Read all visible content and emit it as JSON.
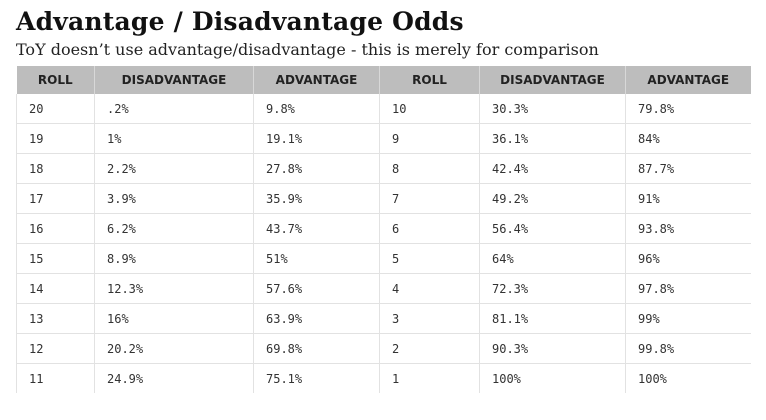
{
  "title": "Advantage / Disadvantage Odds",
  "subtitle": "ToY doesn’t use advantage/disadvantage - this is merely for comparison",
  "table": {
    "headers": [
      "ROLL",
      "DISADVANTAGE",
      "ADVANTAGE",
      "ROLL",
      "DISADVANTAGE",
      "ADVANTAGE"
    ],
    "rows": [
      [
        "20",
        ".2%",
        "9.8%",
        "10",
        "30.3%",
        "79.8%"
      ],
      [
        "19",
        "1%",
        "19.1%",
        "9",
        "36.1%",
        "84%"
      ],
      [
        "18",
        "2.2%",
        "27.8%",
        "8",
        "42.4%",
        "87.7%"
      ],
      [
        "17",
        "3.9%",
        "35.9%",
        "7",
        "49.2%",
        "91%"
      ],
      [
        "16",
        "6.2%",
        "43.7%",
        "6",
        "56.4%",
        "93.8%"
      ],
      [
        "15",
        "8.9%",
        "51%",
        "5",
        "64%",
        "96%"
      ],
      [
        "14",
        "12.3%",
        "57.6%",
        "4",
        "72.3%",
        "97.8%"
      ],
      [
        "13",
        "16%",
        "63.9%",
        "3",
        "81.1%",
        "99%"
      ],
      [
        "12",
        "20.2%",
        "69.8%",
        "2",
        "90.3%",
        "99.8%"
      ],
      [
        "11",
        "24.9%",
        "75.1%",
        "1",
        "100%",
        "100%"
      ]
    ]
  }
}
